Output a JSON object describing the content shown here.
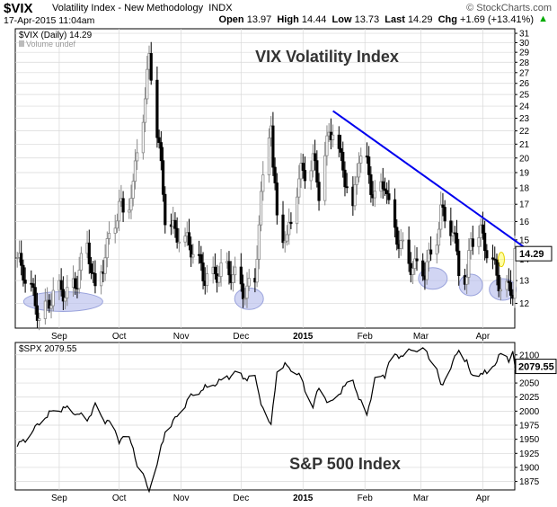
{
  "header": {
    "symbol": "$VIX",
    "description": "Volatility Index - New Methodology",
    "exchange": "INDX",
    "date": "17-Apr-2015 11:04am",
    "site": "© StockCharts.com",
    "open_label": "Open",
    "open": "13.97",
    "high_label": "High",
    "high": "14.44",
    "low_label": "Low",
    "low": "13.73",
    "last_label": "Last",
    "last": "14.29",
    "chg_label": "Chg",
    "chg": "+1.69 (+13.41%)",
    "chg_arrow": "▲"
  },
  "colors": {
    "trendline": "#0000ee",
    "highlight": "#b8bfec",
    "last_box": "#ffff00",
    "spx_line": "#000000"
  },
  "chart_data": [
    {
      "type": "candlestick",
      "legend": "$VIX (Daily) 14.29",
      "legend_volume": "Volume undef",
      "annotation": "VIX Volatility Index",
      "last_value_label": "14.29",
      "ylim": [
        11,
        31.5
      ],
      "y_scale": "log",
      "y_ticks": [
        12,
        13,
        14,
        15,
        16,
        17,
        18,
        19,
        20,
        21,
        22,
        23,
        24,
        25,
        26,
        27,
        28,
        29,
        30,
        31
      ],
      "x_labels": [
        {
          "date": "2014-09-01",
          "label": "Sep",
          "bold": false
        },
        {
          "date": "2014-10-01",
          "label": "Oct",
          "bold": false
        },
        {
          "date": "2014-11-01",
          "label": "Nov",
          "bold": false
        },
        {
          "date": "2014-12-01",
          "label": "Dec",
          "bold": false
        },
        {
          "date": "2015-01-01",
          "label": "2015",
          "bold": true
        },
        {
          "date": "2015-02-01",
          "label": "Feb",
          "bold": false
        },
        {
          "date": "2015-03-01",
          "label": "Mar",
          "bold": false
        },
        {
          "date": "2015-04-01",
          "label": "Apr",
          "bold": false
        }
      ],
      "xlim": [
        "2014-08-10",
        "2015-04-17"
      ],
      "trendline": [
        [
          "2015-01-16",
          23.6
        ],
        [
          "2015-04-22",
          14.6
        ]
      ],
      "highlights": [
        {
          "date": "2014-08-25",
          "value": 12.0
        },
        {
          "date": "2014-12-05",
          "value": 12.2
        },
        {
          "date": "2015-03-07",
          "value": 13.1
        },
        {
          "date": "2015-03-26",
          "value": 12.8
        },
        {
          "date": "2015-04-11",
          "value": 12.6
        },
        {
          "date": "2015-04-17",
          "value": 14.0
        }
      ],
      "anchors": [
        [
          "2014-08-10",
          14.5
        ],
        [
          "2014-08-13",
          13.3
        ],
        [
          "2014-08-18",
          12.5
        ],
        [
          "2014-08-22",
          11.7
        ],
        [
          "2014-08-29",
          12.2
        ],
        [
          "2014-09-05",
          12.5
        ],
        [
          "2014-09-10",
          13.3
        ],
        [
          "2014-09-15",
          14.5
        ],
        [
          "2014-09-19",
          12.3
        ],
        [
          "2014-09-23",
          14.0
        ],
        [
          "2014-09-26",
          15.3
        ],
        [
          "2014-10-01",
          16.7
        ],
        [
          "2014-10-04",
          16.0
        ],
        [
          "2014-10-08",
          18.0
        ],
        [
          "2014-10-10",
          21.2
        ],
        [
          "2014-10-14",
          24.8
        ],
        [
          "2014-10-15",
          26.5
        ],
        [
          "2014-10-16",
          28.5
        ],
        [
          "2014-10-20",
          21.5
        ],
        [
          "2014-10-24",
          16.5
        ],
        [
          "2014-10-30",
          15.5
        ],
        [
          "2014-11-05",
          14.5
        ],
        [
          "2014-11-12",
          13.5
        ],
        [
          "2014-11-20",
          13.2
        ],
        [
          "2014-11-28",
          13.4
        ],
        [
          "2014-12-04",
          12.5
        ],
        [
          "2014-12-08",
          12.8
        ],
        [
          "2014-12-12",
          18.5
        ],
        [
          "2014-12-16",
          23.5
        ],
        [
          "2014-12-17",
          19.5
        ],
        [
          "2014-12-19",
          16.5
        ],
        [
          "2014-12-24",
          14.6
        ],
        [
          "2014-12-31",
          19.2
        ],
        [
          "2015-01-06",
          20.0
        ],
        [
          "2015-01-09",
          17.5
        ],
        [
          "2015-01-14",
          21.4
        ],
        [
          "2015-01-16",
          22.6
        ],
        [
          "2015-01-21",
          19.5
        ],
        [
          "2015-01-26",
          16.2
        ],
        [
          "2015-01-29",
          20.0
        ],
        [
          "2015-02-02",
          19.5
        ],
        [
          "2015-02-06",
          17.6
        ],
        [
          "2015-02-11",
          18.2
        ],
        [
          "2015-02-14",
          15.5
        ],
        [
          "2015-02-20",
          14.8
        ],
        [
          "2015-02-26",
          13.5
        ],
        [
          "2015-03-03",
          13.2
        ],
        [
          "2015-03-09",
          15.5
        ],
        [
          "2015-03-11",
          16.8
        ],
        [
          "2015-03-16",
          15.6
        ],
        [
          "2015-03-20",
          13.5
        ],
        [
          "2015-03-24",
          13.0
        ],
        [
          "2015-03-26",
          15.5
        ],
        [
          "2015-03-31",
          15.3
        ],
        [
          "2015-04-03",
          14.2
        ],
        [
          "2015-04-07",
          13.4
        ],
        [
          "2015-04-10",
          13.0
        ],
        [
          "2015-04-14",
          12.8
        ],
        [
          "2015-04-16",
          12.6
        ],
        [
          "2015-04-17",
          14.29
        ]
      ]
    },
    {
      "type": "line",
      "legend": "$SPX 2079.55",
      "annotation": "S&P 500 Index",
      "last_value_label": "2079.55",
      "ylim": [
        1860,
        2122
      ],
      "y_ticks": [
        1875,
        1900,
        1925,
        1950,
        1975,
        2000,
        2025,
        2050,
        2075,
        2100
      ],
      "x_labels": [
        {
          "date": "2014-09-01",
          "label": "Sep",
          "bold": false
        },
        {
          "date": "2014-10-01",
          "label": "Oct",
          "bold": false
        },
        {
          "date": "2014-11-01",
          "label": "Nov",
          "bold": false
        },
        {
          "date": "2014-12-01",
          "label": "Dec",
          "bold": false
        },
        {
          "date": "2015-01-01",
          "label": "2015",
          "bold": true
        },
        {
          "date": "2015-02-01",
          "label": "Feb",
          "bold": false
        },
        {
          "date": "2015-03-01",
          "label": "Mar",
          "bold": false
        },
        {
          "date": "2015-04-01",
          "label": "Apr",
          "bold": false
        }
      ],
      "xlim": [
        "2014-08-10",
        "2015-04-17"
      ],
      "anchors": [
        [
          "2014-08-10",
          1933
        ],
        [
          "2014-08-13",
          1945
        ],
        [
          "2014-08-18",
          1960
        ],
        [
          "2014-08-22",
          1980
        ],
        [
          "2014-08-29",
          2001
        ],
        [
          "2014-09-05",
          2005
        ],
        [
          "2014-09-10",
          1995
        ],
        [
          "2014-09-15",
          1985
        ],
        [
          "2014-09-19",
          2010
        ],
        [
          "2014-09-23",
          1985
        ],
        [
          "2014-09-26",
          1982
        ],
        [
          "2014-10-01",
          1947
        ],
        [
          "2014-10-04",
          1962
        ],
        [
          "2014-10-08",
          1935
        ],
        [
          "2014-10-10",
          1905
        ],
        [
          "2014-10-14",
          1878
        ],
        [
          "2014-10-15",
          1863
        ],
        [
          "2014-10-16",
          1862
        ],
        [
          "2014-10-20",
          1905
        ],
        [
          "2014-10-24",
          1964
        ],
        [
          "2014-10-30",
          1990
        ],
        [
          "2014-11-05",
          2024
        ],
        [
          "2014-11-12",
          2039
        ],
        [
          "2014-11-20",
          2052
        ],
        [
          "2014-11-28",
          2068
        ],
        [
          "2014-12-04",
          2058
        ],
        [
          "2014-12-08",
          2060
        ],
        [
          "2014-12-12",
          2003
        ],
        [
          "2014-12-16",
          1972
        ],
        [
          "2014-12-17",
          2012
        ],
        [
          "2014-12-19",
          2070
        ],
        [
          "2014-12-24",
          2082
        ],
        [
          "2014-12-31",
          2059
        ],
        [
          "2015-01-06",
          2005
        ],
        [
          "2015-01-09",
          2045
        ],
        [
          "2015-01-14",
          2012
        ],
        [
          "2015-01-16",
          2020
        ],
        [
          "2015-01-21",
          2040
        ],
        [
          "2015-01-26",
          2058
        ],
        [
          "2015-01-29",
          2020
        ],
        [
          "2015-02-02",
          1995
        ],
        [
          "2015-02-06",
          2055
        ],
        [
          "2015-02-11",
          2065
        ],
        [
          "2015-02-14",
          2096
        ],
        [
          "2015-02-20",
          2100
        ],
        [
          "2015-02-26",
          2110
        ],
        [
          "2015-03-03",
          2108
        ],
        [
          "2015-03-09",
          2075
        ],
        [
          "2015-03-11",
          2042
        ],
        [
          "2015-03-16",
          2080
        ],
        [
          "2015-03-20",
          2108
        ],
        [
          "2015-03-24",
          2090
        ],
        [
          "2015-03-26",
          2062
        ],
        [
          "2015-03-31",
          2068
        ],
        [
          "2015-04-03",
          2066
        ],
        [
          "2015-04-07",
          2085
        ],
        [
          "2015-04-10",
          2101
        ],
        [
          "2015-04-14",
          2092
        ],
        [
          "2015-04-16",
          2106
        ],
        [
          "2015-04-17",
          2080
        ]
      ]
    }
  ]
}
